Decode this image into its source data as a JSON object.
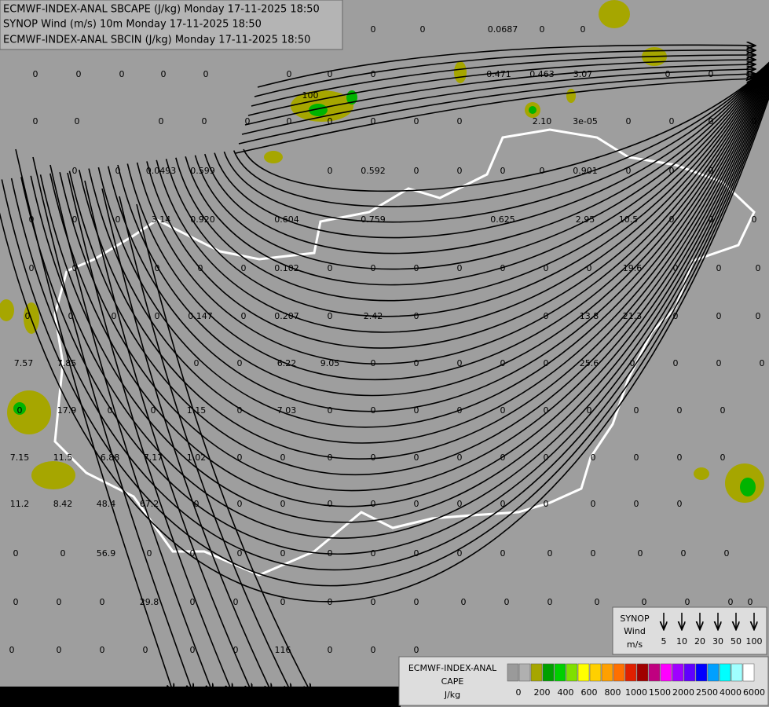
{
  "header": {
    "lines": [
      "ECMWF-INDEX-ANAL SBCAPE (J/kg) Monday 17-11-2025 18:50",
      "SYNOP Wind (m/s) 10m Monday 17-11-2025 18:50",
      "ECMWF-INDEX-ANAL SBCIN (J/kg) Monday 17-11-2025 18:50"
    ]
  },
  "map": {
    "labels": [
      [
        "0",
        "0",
        "0.0687",
        "0",
        "0"
      ],
      [
        "0",
        "0",
        "0",
        "0",
        "0",
        "0",
        "0",
        "0",
        "0.471",
        "0.463",
        "3.07",
        "0",
        "0",
        "0"
      ],
      [
        "100"
      ],
      [
        "0",
        "0",
        "0",
        "0",
        "0",
        "0",
        "0",
        "0",
        "0",
        "0",
        "2.10",
        "3e-05",
        "0",
        "0",
        "0",
        "0"
      ],
      [
        "0",
        "0",
        "0.0493",
        "0.599",
        "0",
        "0.592",
        "0",
        "0",
        "0",
        "0",
        "0.901",
        "0",
        "0",
        "0"
      ],
      [
        "0",
        "0",
        "0",
        "3.14",
        "0.920",
        "0.604",
        "0.759",
        "0.625",
        "2.95",
        "10.5",
        "0",
        "0",
        "0"
      ],
      [
        "0",
        "0",
        "0",
        "0",
        "0",
        "0.102",
        "0",
        "0",
        "0",
        "0",
        "0",
        "0",
        "0",
        "19.6",
        "0",
        "0",
        "0"
      ],
      [
        "0",
        "0",
        "0",
        "0",
        "0.147",
        "0",
        "0.207",
        "0",
        "2.42",
        "0",
        "0",
        "13.8",
        "21.3",
        "0",
        "0",
        "0"
      ],
      [
        "7.57",
        "7.85",
        "0",
        "0",
        "6.22",
        "9.05",
        "0",
        "0",
        "0",
        "0",
        "0",
        "25.6",
        "0",
        "0",
        "0",
        "0"
      ],
      [
        "0",
        "17.9",
        "0",
        "0",
        "1.15",
        "0",
        "7.03",
        "0",
        "0",
        "0",
        "0",
        "0",
        "0",
        "0",
        "0",
        "0",
        "0"
      ],
      [
        "7.15",
        "11.5",
        "6.88",
        "7.17",
        "1.02",
        "0",
        "0",
        "0",
        "0",
        "0",
        "0",
        "0",
        "0",
        "0",
        "0",
        "0",
        "0"
      ],
      [
        "11.2",
        "8.42",
        "48.4",
        "67.2",
        "0",
        "0",
        "0",
        "0",
        "0",
        "0",
        "0",
        "0",
        "0",
        "0",
        "0",
        "0"
      ],
      [
        "0",
        "0",
        "56.9",
        "0",
        "0",
        "0",
        "0",
        "0",
        "0",
        "0",
        "0",
        "0",
        "0",
        "0",
        "0",
        "0",
        "0"
      ],
      [
        "0",
        "0",
        "0",
        "29.8",
        "0",
        "0",
        "0",
        "0",
        "0",
        "0",
        "0",
        "0",
        "0",
        "0",
        "0",
        "0",
        "0",
        "0"
      ],
      [
        "0",
        "0",
        "0",
        "0",
        "0",
        "0",
        "116",
        "0",
        "0",
        "0"
      ]
    ]
  },
  "wind_legend": {
    "lines": [
      "SYNOP",
      "Wind",
      "m/s"
    ],
    "speeds": [
      "5",
      "10",
      "20",
      "30",
      "50",
      "100"
    ]
  },
  "cape_legend": {
    "lines": [
      "ECMWF-INDEX-ANAL",
      "CAPE",
      "J/kg"
    ],
    "ticks": [
      "0",
      "200",
      "400",
      "600",
      "800",
      "1000",
      "1500",
      "2000",
      "2500",
      "4000",
      "6000"
    ]
  }
}
